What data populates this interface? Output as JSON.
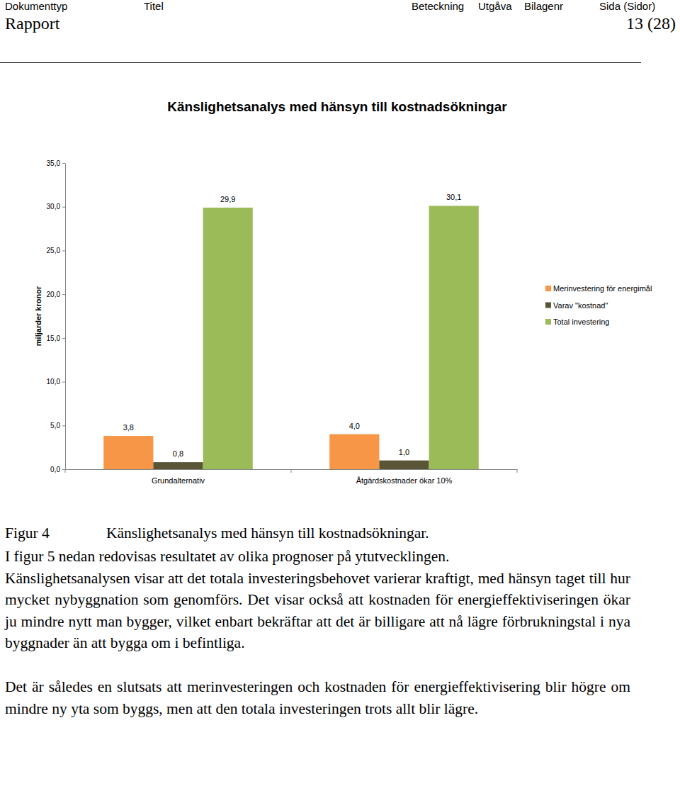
{
  "header": {
    "fields": [
      "Dokumenttyp",
      "Titel",
      "Beteckning",
      "Utgåva",
      "Bilagenr",
      "Sida (Sidor)"
    ],
    "document_type": "Rapport",
    "page": "13 (28)"
  },
  "chart_data": {
    "type": "bar",
    "title": "Känslighetsanalys med hänsyn till kostnadsökningar",
    "y_label": "miljarder kronor",
    "categories": [
      "Grundalternativ",
      "Åtgärdskostnader ökar 10%"
    ],
    "series": [
      {
        "name": "Merinvestering för energimål",
        "color": "#f79646",
        "values": [
          3.8,
          4.0
        ],
        "value_labels": [
          "3,8",
          "4,0"
        ]
      },
      {
        "name": "Varav \"kostnad\"",
        "color": "#5a5536",
        "values": [
          0.8,
          1.0
        ],
        "value_labels": [
          "0,8",
          "1,0"
        ]
      },
      {
        "name": "Total investering",
        "color": "#9bbb59",
        "values": [
          29.9,
          30.1
        ],
        "value_labels": [
          "29,9",
          "30,1"
        ]
      }
    ],
    "ylim": [
      0,
      35
    ],
    "yticks": [
      {
        "value": 0,
        "label": "0,0"
      },
      {
        "value": 5,
        "label": "5,0"
      },
      {
        "value": 10,
        "label": "10,0"
      },
      {
        "value": 15,
        "label": "15,0"
      },
      {
        "value": 20,
        "label": "20,0"
      },
      {
        "value": 25,
        "label": "25,0"
      },
      {
        "value": 30,
        "label": "30,0"
      },
      {
        "value": 35,
        "label": "35,0"
      }
    ],
    "grid": false,
    "legend": "right",
    "data_labels": true
  },
  "figure": {
    "label": "Figur 4",
    "caption": "Känslighetsanalys med hänsyn till kostnadsökningar."
  },
  "paragraphs": [
    "I figur 5 nedan redovisas resultatet av olika prognoser på ytutvecklingen.",
    "Känslighetsanalysen visar att det totala investeringsbehovet varierar kraftigt, med hänsyn taget till hur mycket nybyggnation som genomförs. Det visar också att kostnaden för energieffektiviseringen ökar ju mindre nytt man bygger, vilket enbart bekräftar att det är billigare att nå lägre förbrukningstal i nya byggnader än att bygga om i befintliga.",
    "Det är således en slutsats att merinvesteringen och kostnaden för energieffektivisering blir högre om mindre ny yta som byggs, men att den totala investeringen trots allt blir lägre."
  ]
}
